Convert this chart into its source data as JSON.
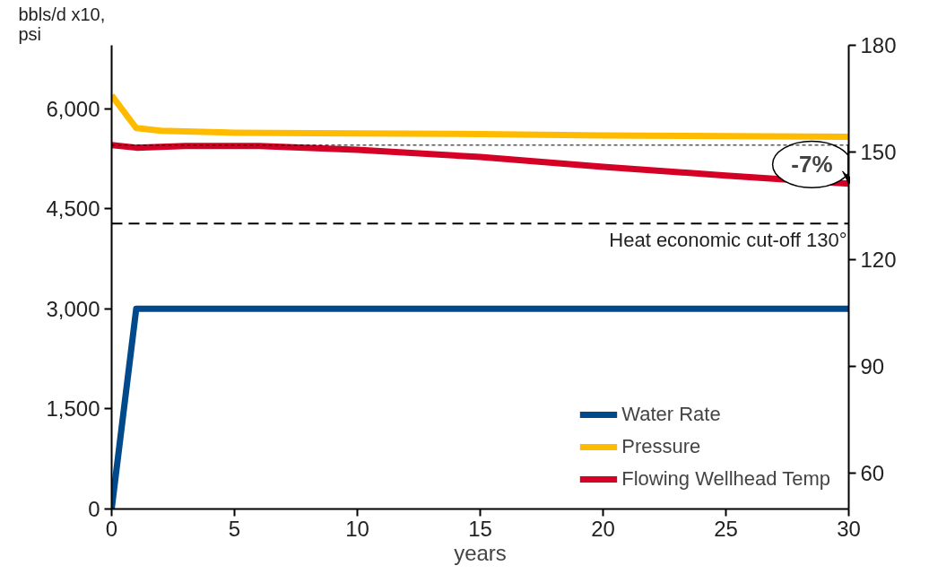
{
  "chart_data": {
    "type": "line",
    "xlabel": "years",
    "ylabel": "bbls/d x10,\npsi",
    "xlim": [
      0,
      30
    ],
    "xticks": [
      0,
      5,
      10,
      15,
      20,
      25,
      30
    ],
    "ylim": [
      0,
      6950
    ],
    "yticks": [
      0,
      {
        "value": 1500,
        "label": "1,500"
      },
      {
        "value": 3000,
        "label": "3,000"
      },
      {
        "value": 4500,
        "label": "4,500"
      },
      {
        "value": 6000,
        "label": "6,000"
      }
    ],
    "y2lim": [
      50,
      180
    ],
    "y2ticks": [
      60,
      90,
      120,
      150,
      180
    ],
    "grid": false,
    "legend": "bottom right",
    "marker": "none",
    "line_style": "solid",
    "series": [
      {
        "name": "Water Rate",
        "color": "#004a8c",
        "x": [
          0,
          1,
          30
        ],
        "values": [
          0,
          3000,
          3000
        ]
      },
      {
        "name": "Pressure",
        "color": "#ffbb00",
        "x": [
          0,
          1,
          2,
          3,
          5,
          10,
          15,
          20,
          25,
          30
        ],
        "values": [
          6200,
          5710,
          5670,
          5660,
          5640,
          5630,
          5620,
          5600,
          5590,
          5580
        ]
      },
      {
        "name": "Flowing Wellhead Temp",
        "color": "#d50026",
        "axis": "y2",
        "x": [
          0,
          1,
          3,
          6,
          10,
          15,
          20,
          25,
          30
        ],
        "values": [
          152.0,
          151.3,
          151.8,
          151.8,
          150.7,
          148.7,
          145.9,
          143.5,
          141.2
        ]
      }
    ],
    "ref_lines": [
      {
        "axis": "y2",
        "value": 152,
        "label": null,
        "line_style": "dotted",
        "color": "#000000"
      },
      {
        "axis": "y2",
        "value": 130,
        "label": "Heat economic cut-off 130°",
        "line_style": "dashed",
        "color": "#000000"
      }
    ],
    "annotations": [
      "-7%"
    ]
  }
}
